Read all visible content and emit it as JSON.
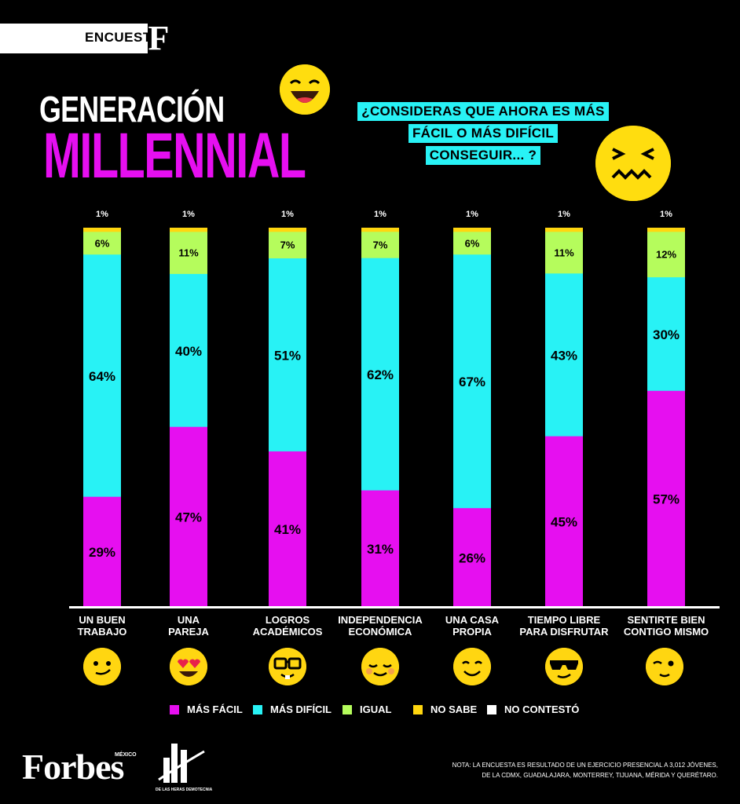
{
  "header": {
    "tag": "ENCUESTA",
    "tag_logo": "F"
  },
  "title": {
    "line1": "GENERACIÓN",
    "line2": "MILLENNIAL"
  },
  "question": {
    "line1": "¿CONSIDERAS QUE AHORA ES MÁS",
    "line2": "FÁCIL O MÁS DIFÍCIL",
    "line3": "CONSEGUIR... ?"
  },
  "colors": {
    "mas_facil": "#e60ff0",
    "mas_dificil": "#28f2f5",
    "igual": "#b5fc5c",
    "no_sabe": "#ffd60f",
    "no_contesto": "#ffffff"
  },
  "chart_data": {
    "type": "bar",
    "stacked": true,
    "categories": [
      "UN BUEN TRABAJO",
      "UNA PAREJA",
      "LOGROS ACADÉMICOS",
      "INDEPENDENCIA ECONÓMICA",
      "UNA CASA PROPIA",
      "TIEMPO LIBRE PARA DISFRUTAR",
      "SENTIRTE BIEN CONTIGO MISMO"
    ],
    "category_lines": [
      [
        "UN BUEN",
        "TRABAJO"
      ],
      [
        "UNA",
        "PAREJA"
      ],
      [
        "LOGROS",
        "ACADÉMICOS"
      ],
      [
        "INDEPENDENCIA",
        "ECONÓMICA"
      ],
      [
        "UNA CASA",
        "PROPIA"
      ],
      [
        "TIEMPO LIBRE",
        "PARA DISFRUTAR"
      ],
      [
        "SENTIRTE BIEN",
        "CONTIGO MISMO"
      ]
    ],
    "series": [
      {
        "name": "MÁS FÁCIL",
        "values": [
          29,
          47,
          41,
          31,
          26,
          45,
          57
        ]
      },
      {
        "name": "MÁS DIFÍCIL",
        "values": [
          64,
          40,
          51,
          62,
          67,
          43,
          30
        ]
      },
      {
        "name": "IGUAL",
        "values": [
          6,
          11,
          7,
          7,
          6,
          11,
          12
        ]
      },
      {
        "name": "NO SABE",
        "values": [
          1,
          1,
          1,
          1,
          1,
          1,
          1
        ]
      }
    ],
    "labels": {
      "mas_facil": [
        "29%",
        "47%",
        "41%",
        "31%",
        "26%",
        "45%",
        "57%"
      ],
      "mas_dificil": [
        "64%",
        "40%",
        "51%",
        "62%",
        "67%",
        "43%",
        "30%"
      ],
      "igual": [
        "6%",
        "11%",
        "7%",
        "7%",
        "6%",
        "11%",
        "12%"
      ],
      "no_sabe": [
        "1%",
        "1%",
        "1%",
        "1%",
        "1%",
        "1%",
        "1%"
      ]
    },
    "ylim": [
      0,
      100
    ]
  },
  "legend": [
    "MÁS FÁCIL",
    "MÁS DIFÍCIL",
    "IGUAL",
    "NO SABE",
    "NO CONTESTÓ"
  ],
  "footer": {
    "brand": "Forbes",
    "brand_sub": "MÉXICO",
    "partner": "DE LAS HERAS DEMOTECNIA",
    "note_line1": "NOTA: LA ENCUESTA ES RESULTADO DE UN EJERCICIO PRESENCIAL A 3,012 JÓVENES,",
    "note_line2": "DE LA CDMX, GUADALAJARA, MONTERREY, TIJUANA, MÉRIDA Y QUERÉTARO."
  },
  "icons": [
    "laughing-face-icon",
    "confounded-face-icon",
    "smirk-face-icon",
    "heart-eyes-face-icon",
    "nerd-face-icon",
    "relieved-face-icon",
    "smiling-face-icon",
    "sunglasses-face-icon",
    "wink-face-icon"
  ]
}
